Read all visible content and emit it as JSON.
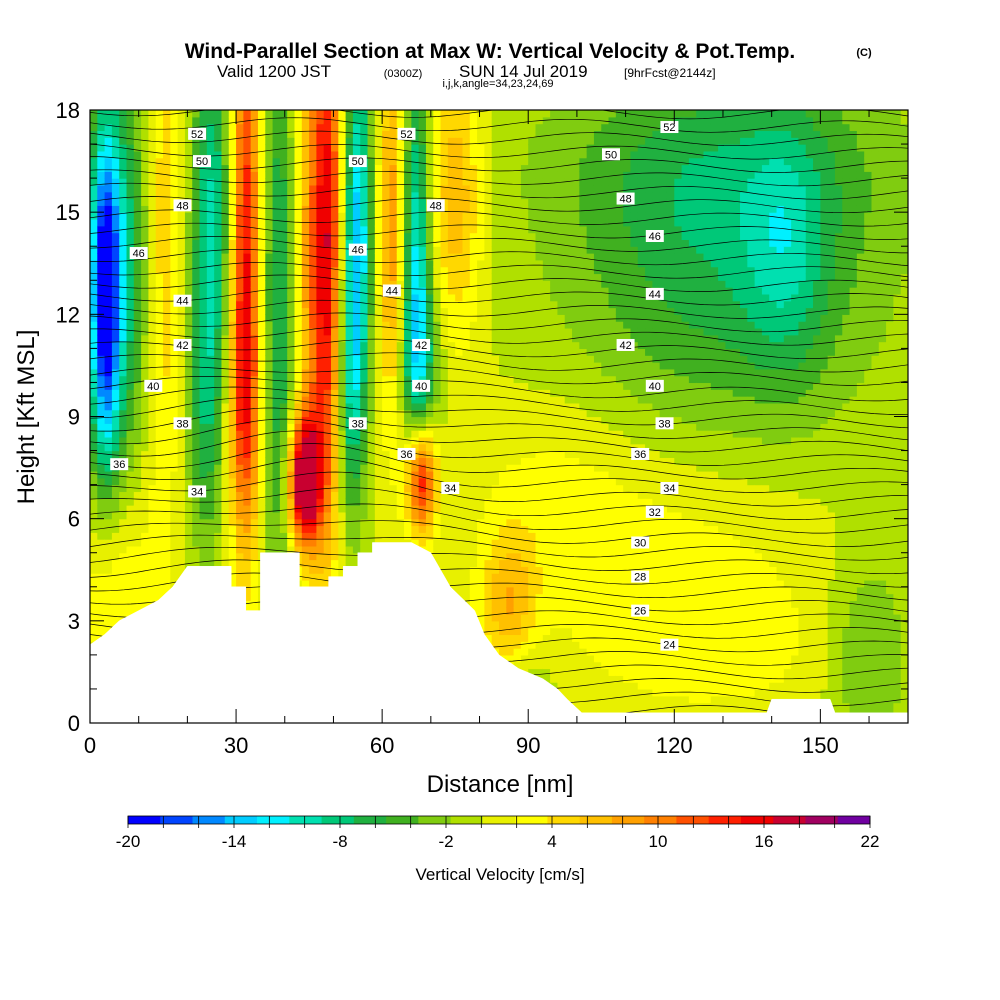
{
  "chart_data": {
    "type": "heatmap",
    "title": "Wind-Parallel Section at Max W: Vertical Velocity & Pot.Temp.",
    "title_mark": "(C)",
    "subtitle": {
      "prefix": "Valid 1200 JST",
      "utc": "(0300Z)",
      "date": "SUN 14 Jul 2019",
      "forecast": "[9hrFcst@2144z]"
    },
    "params_line": "i,j,k,angle=34,23,24,69",
    "xlabel": "Distance [nm]",
    "ylabel": "Height [Kft MSL]",
    "xlim": [
      0,
      168
    ],
    "ylim": [
      0,
      18
    ],
    "x_ticks": [
      "0",
      "30",
      "60",
      "90",
      "120",
      "150"
    ],
    "y_ticks": [
      "0",
      "3",
      "6",
      "9",
      "12",
      "15",
      "18"
    ],
    "x_tick_values": [
      0,
      30,
      60,
      90,
      120,
      150
    ],
    "y_tick_values": [
      0,
      3,
      6,
      9,
      12,
      15,
      18
    ],
    "colorbar": {
      "label": "Vertical Velocity [cm/s]",
      "min": -20,
      "max": 22,
      "step": 2,
      "tick_labels": [
        "-20",
        "-14",
        "-8",
        "-2",
        "4",
        "10",
        "16",
        "22"
      ],
      "colors": [
        "#0000ff",
        "#0044ff",
        "#0088ff",
        "#00ccff",
        "#00f0ff",
        "#00e0b0",
        "#00c878",
        "#20b040",
        "#40b020",
        "#80cc10",
        "#b0e000",
        "#e8f000",
        "#ffff00",
        "#ffd800",
        "#ffc000",
        "#ffa000",
        "#ff8000",
        "#ff5000",
        "#ff2000",
        "#f00000",
        "#c80030",
        "#a00060",
        "#7000a0"
      ]
    },
    "contour_labels": [
      {
        "text": "52",
        "x": 22,
        "y": 17.3
      },
      {
        "text": "50",
        "x": 23,
        "y": 16.5
      },
      {
        "text": "48",
        "x": 19,
        "y": 15.2
      },
      {
        "text": "46",
        "x": 10,
        "y": 13.8
      },
      {
        "text": "44",
        "x": 19,
        "y": 12.4
      },
      {
        "text": "42",
        "x": 19,
        "y": 11.1
      },
      {
        "text": "40",
        "x": 13,
        "y": 9.9
      },
      {
        "text": "38",
        "x": 19,
        "y": 8.8
      },
      {
        "text": "36",
        "x": 6,
        "y": 7.6
      },
      {
        "text": "34",
        "x": 22,
        "y": 6.8
      },
      {
        "text": "52",
        "x": 65,
        "y": 17.3
      },
      {
        "text": "50",
        "x": 55,
        "y": 16.5
      },
      {
        "text": "48",
        "x": 71,
        "y": 15.2
      },
      {
        "text": "46",
        "x": 55,
        "y": 13.9
      },
      {
        "text": "44",
        "x": 62,
        "y": 12.7
      },
      {
        "text": "42",
        "x": 68,
        "y": 11.1
      },
      {
        "text": "40",
        "x": 68,
        "y": 9.9
      },
      {
        "text": "38",
        "x": 55,
        "y": 8.8
      },
      {
        "text": "36",
        "x": 65,
        "y": 7.9
      },
      {
        "text": "34",
        "x": 74,
        "y": 6.9
      },
      {
        "text": "52",
        "x": 119,
        "y": 17.5
      },
      {
        "text": "50",
        "x": 107,
        "y": 16.7
      },
      {
        "text": "48",
        "x": 110,
        "y": 15.4
      },
      {
        "text": "46",
        "x": 116,
        "y": 14.3
      },
      {
        "text": "44",
        "x": 116,
        "y": 12.6
      },
      {
        "text": "42",
        "x": 110,
        "y": 11.1
      },
      {
        "text": "40",
        "x": 116,
        "y": 9.9
      },
      {
        "text": "38",
        "x": 118,
        "y": 8.8
      },
      {
        "text": "36",
        "x": 113,
        "y": 7.9
      },
      {
        "text": "34",
        "x": 119,
        "y": 6.9
      },
      {
        "text": "32",
        "x": 116,
        "y": 6.2
      },
      {
        "text": "30",
        "x": 113,
        "y": 5.3
      },
      {
        "text": "28",
        "x": 113,
        "y": 4.3
      },
      {
        "text": "26",
        "x": 113,
        "y": 3.3
      },
      {
        "text": "24",
        "x": 119,
        "y": 2.3
      }
    ],
    "terrain": [
      [
        0,
        2.3
      ],
      [
        3,
        2.6
      ],
      [
        6,
        3.0
      ],
      [
        10,
        3.3
      ],
      [
        14,
        3.6
      ],
      [
        17,
        4.0
      ],
      [
        20,
        4.6
      ],
      [
        29,
        4.6
      ],
      [
        29,
        4.0
      ],
      [
        32,
        4.0
      ],
      [
        32,
        3.3
      ],
      [
        35,
        3.3
      ],
      [
        35,
        5.0
      ],
      [
        43,
        5.0
      ],
      [
        43,
        4.0
      ],
      [
        49,
        4.0
      ],
      [
        49,
        4.3
      ],
      [
        52,
        4.3
      ],
      [
        52,
        4.6
      ],
      [
        55,
        4.6
      ],
      [
        55,
        5.0
      ],
      [
        58,
        5.0
      ],
      [
        58,
        5.3
      ],
      [
        66,
        5.3
      ],
      [
        70,
        5.0
      ],
      [
        74,
        4.0
      ],
      [
        79,
        3.3
      ],
      [
        81,
        2.6
      ],
      [
        84,
        2.0
      ],
      [
        88,
        1.6
      ],
      [
        93,
        1.3
      ],
      [
        96,
        1.0
      ],
      [
        98,
        0.7
      ],
      [
        101,
        0.3
      ],
      [
        104,
        0.3
      ],
      [
        139,
        0.3
      ],
      [
        140,
        0.7
      ],
      [
        152,
        0.7
      ],
      [
        153,
        0.3
      ],
      [
        168,
        0.3
      ],
      [
        168,
        0
      ],
      [
        0,
        0
      ]
    ],
    "w_features": [
      {
        "x": 3,
        "y": 12.5,
        "sx": 2.2,
        "sy": 3.5,
        "amp": -20
      },
      {
        "x": 7,
        "y": 13.5,
        "sx": 4,
        "sy": 4,
        "amp": -9
      },
      {
        "x": 15,
        "y": 14,
        "sx": 3,
        "sy": 6,
        "amp": 6
      },
      {
        "x": 25,
        "y": 15,
        "sx": 3,
        "sy": 4,
        "amp": -10
      },
      {
        "x": 24,
        "y": 9,
        "sx": 3,
        "sy": 3,
        "amp": -6
      },
      {
        "x": 32,
        "y": 14,
        "sx": 2.2,
        "sy": 6,
        "amp": 16
      },
      {
        "x": 31,
        "y": 9,
        "sx": 3,
        "sy": 2.5,
        "amp": 6
      },
      {
        "x": 39,
        "y": 12,
        "sx": 2.5,
        "sy": 6,
        "amp": -9
      },
      {
        "x": 45,
        "y": 13.5,
        "sx": 2.5,
        "sy": 6,
        "amp": 8
      },
      {
        "x": 44,
        "y": 7.1,
        "sx": 2.4,
        "sy": 1.3,
        "amp": 22
      },
      {
        "x": 49,
        "y": 14,
        "sx": 2.2,
        "sy": 6,
        "amp": 16
      },
      {
        "x": 55,
        "y": 14.5,
        "sx": 2,
        "sy": 4,
        "amp": -14
      },
      {
        "x": 53,
        "y": 10,
        "sx": 2,
        "sy": 3,
        "amp": -8
      },
      {
        "x": 62,
        "y": 14.5,
        "sx": 2,
        "sy": 4,
        "amp": 10
      },
      {
        "x": 67,
        "y": 14,
        "sx": 2,
        "sy": 4,
        "amp": -12
      },
      {
        "x": 68,
        "y": 10.5,
        "sx": 3,
        "sy": 2,
        "amp": -7
      },
      {
        "x": 68,
        "y": 7.2,
        "sx": 2.2,
        "sy": 1.2,
        "amp": 18
      },
      {
        "x": 75,
        "y": 15.5,
        "sx": 4,
        "sy": 3,
        "amp": 8
      },
      {
        "x": 86,
        "y": 3.5,
        "sx": 4,
        "sy": 1.5,
        "amp": 7
      },
      {
        "x": 90,
        "y": 1,
        "sx": 4,
        "sy": 1,
        "amp": -3
      },
      {
        "x": 130,
        "y": 13.5,
        "sx": 22,
        "sy": 4,
        "amp": -7
      },
      {
        "x": 143,
        "y": 13.8,
        "sx": 6,
        "sy": 2.5,
        "amp": -5
      },
      {
        "x": 130,
        "y": 16.5,
        "sx": 28,
        "sy": 2,
        "amp": -3
      },
      {
        "x": 120,
        "y": 4.5,
        "sx": 22,
        "sy": 3,
        "amp": 3.5
      },
      {
        "x": 95,
        "y": 7,
        "sx": 12,
        "sy": 2,
        "amp": 2
      },
      {
        "x": 160,
        "y": 2,
        "sx": 6,
        "sy": 2,
        "amp": -5
      },
      {
        "x": 5,
        "y": 4,
        "sx": 6,
        "sy": 2,
        "amp": 4
      },
      {
        "x": 140,
        "y": 2,
        "sx": 20,
        "sy": 1.5,
        "amp": 1
      }
    ],
    "w_background": 2
  }
}
